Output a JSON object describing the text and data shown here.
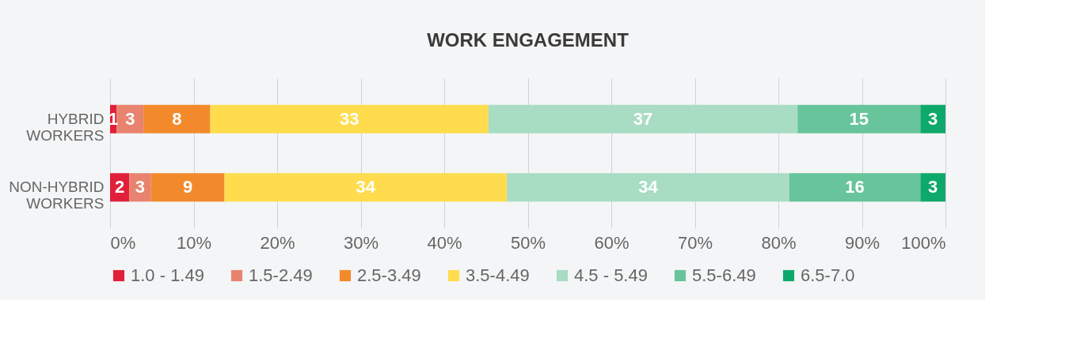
{
  "chart_data": {
    "type": "bar",
    "orientation": "horizontal",
    "stacked": true,
    "title": "WORK ENGAGEMENT",
    "categories": [
      "HYBRID WORKERS",
      "NON-HYBRID WORKERS"
    ],
    "series": [
      {
        "name": "1.0 - 1.49",
        "color": "#e0203a",
        "values": [
          0.8,
          2.3
        ],
        "value_labels": [
          "1",
          "2"
        ]
      },
      {
        "name": "1.5-2.49",
        "color": "#e8836f",
        "values": [
          3.2,
          2.6
        ],
        "value_labels": [
          "3",
          "3"
        ]
      },
      {
        "name": "2.5-3.49",
        "color": "#f28a2c",
        "values": [
          8.0,
          8.8
        ],
        "value_labels": [
          "8",
          "9"
        ]
      },
      {
        "name": "3.5-4.49",
        "color": "#ffdc4e",
        "values": [
          33.3,
          33.8
        ],
        "value_labels": [
          "33",
          "34"
        ]
      },
      {
        "name": "4.5 - 5.49",
        "color": "#a8dcc3",
        "values": [
          37.0,
          33.8
        ],
        "value_labels": [
          "37",
          "34"
        ]
      },
      {
        "name": "5.5-6.49",
        "color": "#67c49b",
        "values": [
          14.7,
          15.7
        ],
        "value_labels": [
          "15",
          "16"
        ]
      },
      {
        "name": "6.5-7.0",
        "color": "#0fa86b",
        "values": [
          3.0,
          3.0
        ],
        "value_labels": [
          "3",
          "3"
        ]
      }
    ],
    "xlim": [
      0,
      100
    ],
    "xticks": [
      {
        "value": 0,
        "label": "0%"
      },
      {
        "value": 10,
        "label": "10%"
      },
      {
        "value": 20,
        "label": "20%"
      },
      {
        "value": 30,
        "label": "30%"
      },
      {
        "value": 40,
        "label": "40%"
      },
      {
        "value": 50,
        "label": "50%"
      },
      {
        "value": 60,
        "label": "60%"
      },
      {
        "value": 70,
        "label": "70%"
      },
      {
        "value": 80,
        "label": "80%"
      },
      {
        "value": 90,
        "label": "90%"
      },
      {
        "value": 100,
        "label": "100%"
      }
    ],
    "grid": "x",
    "legend": "bottom"
  }
}
